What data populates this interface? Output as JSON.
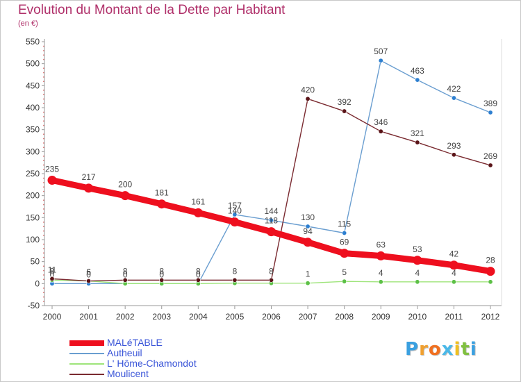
{
  "chart_data": {
    "type": "line",
    "title": "Evolution du Montant de la Dette par Habitant",
    "unit_label": "(en €)",
    "xlabel": "",
    "ylabel": "",
    "x": [
      "2000",
      "2001",
      "2002",
      "2003",
      "2004",
      "2005",
      "2006",
      "2007",
      "2008",
      "2009",
      "2010",
      "2011",
      "2012"
    ],
    "ylim": [
      -50,
      550
    ],
    "yticks": [
      -50,
      0,
      50,
      100,
      150,
      200,
      250,
      300,
      350,
      400,
      450,
      500,
      550
    ],
    "grid": false,
    "legend_position": "bottom-left",
    "series": [
      {
        "name": "Autheuil",
        "color": "#6a9ed0",
        "marker": "#2d7fd0",
        "values": [
          0,
          0,
          0,
          0,
          0,
          157,
          144,
          130,
          115,
          507,
          463,
          422,
          389
        ],
        "labels": [
          "0",
          "0",
          "0",
          "0",
          "0",
          "157",
          "144",
          "130",
          "115",
          "507",
          "463",
          "422",
          "389"
        ]
      },
      {
        "name": "L' Hôme-Chamondot",
        "color": "#9ee47a",
        "marker": "#5cc046",
        "values": [
          8,
          6,
          0,
          0,
          0,
          1,
          1,
          1,
          5,
          4,
          4,
          4,
          4
        ],
        "labels": [
          "8",
          "6",
          "",
          "",
          "",
          "",
          "",
          "1",
          "5",
          "4",
          "4",
          "4",
          "4"
        ]
      },
      {
        "name": "Moulicent",
        "color": "#7a2a30",
        "marker": "#5a1418",
        "values": [
          11,
          6,
          8,
          8,
          8,
          8,
          8,
          420,
          392,
          346,
          321,
          293,
          269
        ],
        "labels": [
          "11",
          "6",
          "8",
          "8",
          "8",
          "8",
          "8",
          "420",
          "392",
          "346",
          "321",
          "293",
          "269"
        ]
      },
      {
        "name": "MALéTABLE",
        "color": "#ee0f1e",
        "marker": "#ee0f1e",
        "values": [
          235,
          217,
          200,
          181,
          161,
          140,
          118,
          94,
          69,
          63,
          53,
          42,
          28
        ],
        "labels": [
          "235",
          "217",
          "200",
          "181",
          "161",
          "140",
          "118",
          "94",
          "69",
          "63",
          "53",
          "42",
          "28"
        ]
      }
    ],
    "legend": [
      "MALéTABLE",
      "Autheuil",
      "L' Hôme-Chamondot",
      "Moulicent"
    ],
    "legend_colors": [
      "#ee0f1e",
      "#6a9ed0",
      "#9ee47a",
      "#7a2a30"
    ],
    "legend_text_colors": [
      "#3a55d8",
      "#3a55d8",
      "#3a55d8",
      "#3a55d8"
    ]
  },
  "branding": {
    "logo_letters": [
      "P",
      "r",
      "o",
      "x",
      "i",
      "t",
      "i"
    ],
    "logo_colors": [
      "#3aa0e0",
      "#f0a030",
      "#f07020",
      "#4ab8e8",
      "#f0c020",
      "#80c040",
      "#3aa0e0"
    ]
  }
}
